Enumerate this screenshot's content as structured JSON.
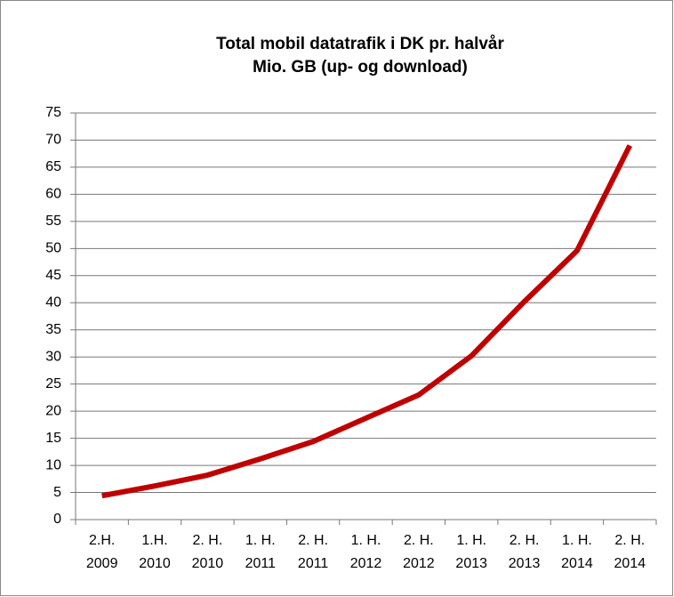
{
  "chart_data": {
    "type": "line",
    "title": [
      "Total mobil datatrafik i DK pr. halvår",
      "Mio. GB (up- og download)"
    ],
    "categories": [
      [
        "2.H.",
        "2009"
      ],
      [
        "1.H.",
        "2010"
      ],
      [
        "2. H.",
        "2010"
      ],
      [
        "1. H.",
        "2011"
      ],
      [
        "2. H.",
        "2011"
      ],
      [
        "1. H.",
        "2012"
      ],
      [
        "2. H.",
        "2012"
      ],
      [
        "1. H.",
        "2013"
      ],
      [
        "2. H.",
        "2013"
      ],
      [
        "1. H.",
        "2014"
      ],
      [
        "2. H.",
        "2014"
      ]
    ],
    "values": [
      4.4,
      6.2,
      8.2,
      11.2,
      14.4,
      18.7,
      23,
      30.2,
      40.2,
      49.6,
      69
    ],
    "color": "#c00000",
    "ylim": [
      0,
      75
    ],
    "yticks": [
      0,
      5,
      10,
      15,
      20,
      25,
      30,
      35,
      40,
      45,
      50,
      55,
      60,
      65,
      70,
      75
    ],
    "grid": true
  }
}
